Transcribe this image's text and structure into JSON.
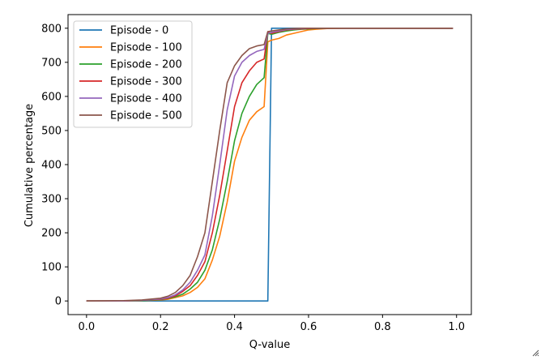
{
  "chart_data": {
    "type": "line",
    "title": "",
    "xlabel": "Q-value",
    "ylabel": "Cumulative percentage",
    "xlim": [
      -0.05,
      1.04
    ],
    "ylim": [
      -40,
      840
    ],
    "xticks": [
      0.0,
      0.2,
      0.4,
      0.6,
      0.8,
      1.0
    ],
    "xtick_labels": [
      "0.0",
      "0.2",
      "0.4",
      "0.6",
      "0.8",
      "1.0"
    ],
    "yticks": [
      0,
      100,
      200,
      300,
      400,
      500,
      600,
      700,
      800
    ],
    "ytick_labels": [
      "0",
      "100",
      "200",
      "300",
      "400",
      "500",
      "600",
      "700",
      "800"
    ],
    "grid": false,
    "legend_position": "top-left",
    "series": [
      {
        "name": "Episode - 0",
        "color": "#1f77b4",
        "x": [
          0.0,
          0.1,
          0.2,
          0.3,
          0.4,
          0.49,
          0.5,
          0.6,
          0.7,
          0.8,
          0.9,
          0.99
        ],
        "y": [
          0,
          0,
          0,
          0,
          0,
          0,
          800,
          800,
          800,
          800,
          800,
          800
        ]
      },
      {
        "name": "Episode - 100",
        "color": "#ff7f0e",
        "x": [
          0.0,
          0.1,
          0.15,
          0.2,
          0.22,
          0.24,
          0.26,
          0.28,
          0.3,
          0.32,
          0.34,
          0.36,
          0.38,
          0.4,
          0.42,
          0.44,
          0.46,
          0.48,
          0.49,
          0.5,
          0.52,
          0.54,
          0.56,
          0.58,
          0.6,
          0.62,
          0.65,
          0.7,
          0.8,
          0.9,
          0.99
        ],
        "y": [
          0,
          0,
          1,
          3,
          5,
          10,
          15,
          25,
          40,
          65,
          120,
          190,
          290,
          410,
          480,
          530,
          555,
          570,
          760,
          765,
          770,
          780,
          785,
          790,
          795,
          797,
          799,
          800,
          800,
          800,
          800
        ]
      },
      {
        "name": "Episode - 200",
        "color": "#2ca02c",
        "x": [
          0.0,
          0.1,
          0.15,
          0.2,
          0.22,
          0.24,
          0.26,
          0.28,
          0.3,
          0.32,
          0.34,
          0.36,
          0.38,
          0.4,
          0.42,
          0.44,
          0.46,
          0.48,
          0.49,
          0.5,
          0.52,
          0.54,
          0.56,
          0.58,
          0.6,
          0.62,
          0.65,
          0.7,
          0.8,
          0.9,
          0.99
        ],
        "y": [
          0,
          0,
          1,
          4,
          7,
          12,
          20,
          35,
          55,
          90,
          150,
          240,
          350,
          470,
          550,
          600,
          635,
          655,
          785,
          782,
          788,
          792,
          795,
          797,
          798,
          799,
          800,
          800,
          800,
          800,
          800
        ]
      },
      {
        "name": "Episode - 300",
        "color": "#d62728",
        "x": [
          0.0,
          0.1,
          0.15,
          0.2,
          0.22,
          0.24,
          0.26,
          0.28,
          0.3,
          0.32,
          0.34,
          0.36,
          0.38,
          0.4,
          0.42,
          0.44,
          0.46,
          0.48,
          0.49,
          0.5,
          0.52,
          0.54,
          0.56,
          0.58,
          0.6,
          0.62,
          0.65,
          0.7,
          0.8,
          0.9,
          0.99
        ],
        "y": [
          0,
          0,
          2,
          5,
          8,
          15,
          28,
          45,
          75,
          115,
          200,
          310,
          440,
          570,
          640,
          675,
          700,
          710,
          790,
          785,
          790,
          795,
          797,
          798,
          799,
          800,
          800,
          800,
          800,
          800,
          800
        ]
      },
      {
        "name": "Episode - 400",
        "color": "#9467bd",
        "x": [
          0.0,
          0.1,
          0.15,
          0.2,
          0.22,
          0.24,
          0.26,
          0.28,
          0.3,
          0.32,
          0.34,
          0.36,
          0.38,
          0.4,
          0.42,
          0.44,
          0.46,
          0.48,
          0.49,
          0.5,
          0.52,
          0.54,
          0.56,
          0.58,
          0.6,
          0.62,
          0.65,
          0.7,
          0.8,
          0.9,
          0.99
        ],
        "y": [
          0,
          0,
          2,
          6,
          10,
          18,
          32,
          55,
          90,
          135,
          250,
          400,
          560,
          660,
          700,
          720,
          732,
          738,
          785,
          788,
          792,
          796,
          798,
          799,
          800,
          800,
          800,
          800,
          800,
          800,
          800
        ]
      },
      {
        "name": "Episode - 500",
        "color": "#8c564b",
        "x": [
          0.0,
          0.1,
          0.15,
          0.2,
          0.22,
          0.24,
          0.26,
          0.28,
          0.3,
          0.32,
          0.34,
          0.36,
          0.38,
          0.4,
          0.42,
          0.44,
          0.46,
          0.48,
          0.49,
          0.5,
          0.52,
          0.54,
          0.56,
          0.58,
          0.6,
          0.62,
          0.65,
          0.7,
          0.8,
          0.9,
          0.99
        ],
        "y": [
          0,
          1,
          3,
          8,
          14,
          25,
          45,
          75,
          130,
          200,
          350,
          500,
          640,
          690,
          720,
          740,
          748,
          752,
          790,
          792,
          795,
          798,
          799,
          800,
          800,
          800,
          800,
          800,
          800,
          800,
          800
        ]
      }
    ]
  },
  "ui": {
    "resize_grip_icon": "resize-grip-icon"
  }
}
